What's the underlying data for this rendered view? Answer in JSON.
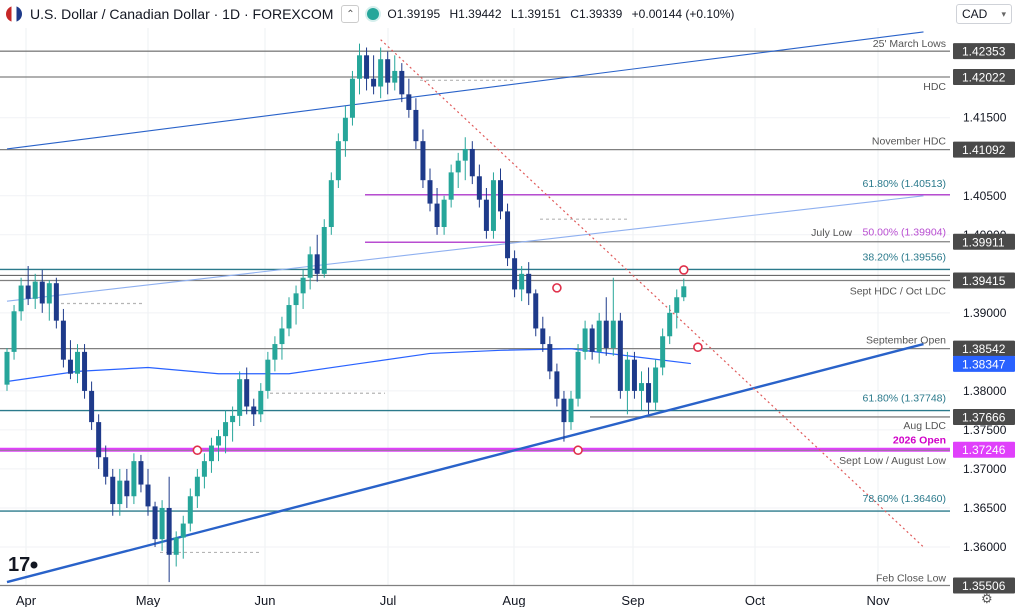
{
  "header": {
    "symbol": "U.S. Dollar / Canadian Dollar · 1D · FOREXCOM",
    "open": "O1.39195",
    "high": "H1.39442",
    "low": "L1.39151",
    "close": "C1.39339",
    "change": "+0.00144 (+0.10%)"
  },
  "currency_selector": "CAD",
  "colors": {
    "up": "#26a69a",
    "down": "#1e3a8a",
    "fib": "#b84dd1",
    "fib_label": "#2b7a8c",
    "level_line": "#808080",
    "price_tag": "#4a4a4a",
    "blue_tag": "#2962ff",
    "magenta": "#e040fb",
    "trend_blue": "#2962c9",
    "trend_red": "#e05a5a"
  },
  "chart_data": {
    "type": "candlestick",
    "title": "U.S. Dollar / Canadian Dollar · 1D · FOREXCOM",
    "ylim": [
      1.355,
      1.4265
    ],
    "price_ticks": [
      "1.41500",
      "1.40500",
      "1.40000",
      "1.39000",
      "1.38000",
      "1.37500",
      "1.37000",
      "1.36500",
      "1.36000"
    ],
    "months": [
      "Apr",
      "May",
      "Jun",
      "Jul",
      "Aug",
      "Sep",
      "Oct",
      "Nov"
    ],
    "price_tags": [
      {
        "label": "1.42353",
        "value": 1.42353,
        "style": "gray"
      },
      {
        "label": "1.42022",
        "value": 1.42022,
        "style": "gray"
      },
      {
        "label": "1.41092",
        "value": 1.41092,
        "style": "gray"
      },
      {
        "label": "1.39911",
        "value": 1.39911,
        "style": "gray"
      },
      {
        "label": "1.39415",
        "value": 1.39415,
        "style": "gray"
      },
      {
        "label": "1.38542",
        "value": 1.38542,
        "style": "gray"
      },
      {
        "label": "1.38347",
        "value": 1.38347,
        "style": "blue"
      },
      {
        "label": "1.37666",
        "value": 1.37666,
        "style": "gray"
      },
      {
        "label": "1.37246",
        "value": 1.37246,
        "style": "magenta"
      },
      {
        "label": "1.35506",
        "value": 1.35506,
        "style": "gray"
      }
    ],
    "levels": [
      {
        "label": "25' March Lows",
        "value": 1.42353,
        "kind": "gray"
      },
      {
        "label": "HDC",
        "value": 1.42022,
        "kind": "gray"
      },
      {
        "label": "November HDC",
        "value": 1.41092,
        "kind": "gray"
      },
      {
        "label": "61.80% (1.40513)",
        "value": 1.40513,
        "kind": "fib-purple"
      },
      {
        "label": "50.00% (1.39904)",
        "value": 1.39904,
        "kind": "fib-purple-short"
      },
      {
        "label": "July Low",
        "value": 1.39911,
        "kind": "gray"
      },
      {
        "label": "38.20% (1.39556)",
        "value": 1.39556,
        "kind": "fib-teal"
      },
      {
        "label": "Sept HDC / Oct LDC",
        "value": 1.39415,
        "kind": "gray"
      },
      {
        "label": "September Open",
        "value": 1.38542,
        "kind": "gray"
      },
      {
        "label": "61.80% (1.37748)",
        "value": 1.37748,
        "kind": "fib-teal"
      },
      {
        "label": "Aug LDC",
        "value": 1.37666,
        "kind": "gray"
      },
      {
        "label": "2026 Open",
        "value": 1.37246,
        "kind": "magenta"
      },
      {
        "label": "Sept Low / August Low",
        "value": 1.3724,
        "kind": "gray"
      },
      {
        "label": "78.60% (1.36460)",
        "value": 1.3646,
        "kind": "fib-teal"
      },
      {
        "label": "Feb Close Low",
        "value": 1.35506,
        "kind": "gray"
      }
    ],
    "candles": [
      [
        1.3808,
        1.3855,
        1.38,
        1.385
      ],
      [
        1.385,
        1.391,
        1.384,
        1.3902
      ],
      [
        1.3902,
        1.3945,
        1.389,
        1.3935
      ],
      [
        1.3935,
        1.396,
        1.391,
        1.3918
      ],
      [
        1.3918,
        1.395,
        1.3905,
        1.394
      ],
      [
        1.394,
        1.3955,
        1.39,
        1.3912
      ],
      [
        1.3912,
        1.3942,
        1.389,
        1.3938
      ],
      [
        1.3938,
        1.3945,
        1.388,
        1.389
      ],
      [
        1.389,
        1.3905,
        1.383,
        1.384
      ],
      [
        1.384,
        1.3865,
        1.3815,
        1.3822
      ],
      [
        1.3822,
        1.386,
        1.381,
        1.385
      ],
      [
        1.385,
        1.386,
        1.379,
        1.38
      ],
      [
        1.38,
        1.3812,
        1.375,
        1.376
      ],
      [
        1.376,
        1.377,
        1.37,
        1.3715
      ],
      [
        1.3715,
        1.373,
        1.368,
        1.369
      ],
      [
        1.369,
        1.37,
        1.364,
        1.3655
      ],
      [
        1.3655,
        1.37,
        1.364,
        1.3685
      ],
      [
        1.3685,
        1.37,
        1.365,
        1.3665
      ],
      [
        1.3665,
        1.372,
        1.3655,
        1.371
      ],
      [
        1.371,
        1.3718,
        1.367,
        1.368
      ],
      [
        1.368,
        1.37,
        1.364,
        1.3652
      ],
      [
        1.3652,
        1.3658,
        1.36,
        1.361
      ],
      [
        1.361,
        1.366,
        1.3595,
        1.365
      ],
      [
        1.365,
        1.369,
        1.3555,
        1.359
      ],
      [
        1.359,
        1.362,
        1.3575,
        1.3612
      ],
      [
        1.3612,
        1.364,
        1.3585,
        1.363
      ],
      [
        1.363,
        1.3675,
        1.362,
        1.3665
      ],
      [
        1.3665,
        1.37,
        1.365,
        1.369
      ],
      [
        1.369,
        1.372,
        1.3675,
        1.371
      ],
      [
        1.371,
        1.374,
        1.3695,
        1.373
      ],
      [
        1.373,
        1.375,
        1.371,
        1.3742
      ],
      [
        1.3742,
        1.3775,
        1.372,
        1.376
      ],
      [
        1.376,
        1.378,
        1.3735,
        1.3768
      ],
      [
        1.3768,
        1.3825,
        1.3755,
        1.3815
      ],
      [
        1.3815,
        1.383,
        1.377,
        1.378
      ],
      [
        1.378,
        1.379,
        1.3755,
        1.377
      ],
      [
        1.377,
        1.381,
        1.376,
        1.38
      ],
      [
        1.38,
        1.385,
        1.379,
        1.384
      ],
      [
        1.384,
        1.387,
        1.3825,
        1.386
      ],
      [
        1.386,
        1.3895,
        1.384,
        1.388
      ],
      [
        1.388,
        1.392,
        1.387,
        1.391
      ],
      [
        1.391,
        1.3935,
        1.3885,
        1.3925
      ],
      [
        1.3925,
        1.3955,
        1.3905,
        1.3945
      ],
      [
        1.3945,
        1.3985,
        1.393,
        1.3975
      ],
      [
        1.3975,
        1.4,
        1.394,
        1.395
      ],
      [
        1.395,
        1.402,
        1.3945,
        1.401
      ],
      [
        1.401,
        1.408,
        1.4,
        1.407
      ],
      [
        1.407,
        1.413,
        1.406,
        1.412
      ],
      [
        1.412,
        1.4165,
        1.41,
        1.415
      ],
      [
        1.415,
        1.421,
        1.414,
        1.42
      ],
      [
        1.42,
        1.4245,
        1.418,
        1.423
      ],
      [
        1.423,
        1.424,
        1.4185,
        1.42
      ],
      [
        1.42,
        1.423,
        1.418,
        1.419
      ],
      [
        1.419,
        1.424,
        1.4175,
        1.4225
      ],
      [
        1.4225,
        1.4235,
        1.418,
        1.4195
      ],
      [
        1.4195,
        1.423,
        1.4185,
        1.421
      ],
      [
        1.421,
        1.422,
        1.417,
        1.418
      ],
      [
        1.418,
        1.42,
        1.415,
        1.416
      ],
      [
        1.416,
        1.4175,
        1.411,
        1.412
      ],
      [
        1.412,
        1.4135,
        1.406,
        1.407
      ],
      [
        1.407,
        1.4085,
        1.403,
        1.404
      ],
      [
        1.404,
        1.406,
        1.4,
        1.401
      ],
      [
        1.401,
        1.405,
        1.4,
        1.4045
      ],
      [
        1.4045,
        1.409,
        1.4035,
        1.408
      ],
      [
        1.408,
        1.4105,
        1.406,
        1.4095
      ],
      [
        1.4095,
        1.4125,
        1.407,
        1.411
      ],
      [
        1.411,
        1.412,
        1.4065,
        1.4075
      ],
      [
        1.4075,
        1.409,
        1.4035,
        1.4045
      ],
      [
        1.4045,
        1.406,
        1.3995,
        1.4005
      ],
      [
        1.4005,
        1.408,
        1.3995,
        1.407
      ],
      [
        1.407,
        1.4085,
        1.402,
        1.403
      ],
      [
        1.403,
        1.404,
        1.396,
        1.397
      ],
      [
        1.397,
        1.398,
        1.392,
        1.393
      ],
      [
        1.393,
        1.396,
        1.3915,
        1.395
      ],
      [
        1.395,
        1.3965,
        1.391,
        1.3925
      ],
      [
        1.3925,
        1.393,
        1.387,
        1.388
      ],
      [
        1.388,
        1.3895,
        1.385,
        1.386
      ],
      [
        1.386,
        1.387,
        1.3815,
        1.3825
      ],
      [
        1.3825,
        1.3835,
        1.378,
        1.379
      ],
      [
        1.379,
        1.38,
        1.3735,
        1.376
      ],
      [
        1.376,
        1.38,
        1.375,
        1.379
      ],
      [
        1.379,
        1.386,
        1.378,
        1.385
      ],
      [
        1.385,
        1.389,
        1.384,
        1.388
      ],
      [
        1.388,
        1.3885,
        1.384,
        1.385
      ],
      [
        1.385,
        1.39,
        1.3835,
        1.389
      ],
      [
        1.389,
        1.392,
        1.3845,
        1.3855
      ],
      [
        1.3855,
        1.3945,
        1.3845,
        1.389
      ],
      [
        1.389,
        1.39,
        1.379,
        1.38
      ],
      [
        1.38,
        1.385,
        1.377,
        1.384
      ],
      [
        1.384,
        1.385,
        1.379,
        1.38
      ],
      [
        1.38,
        1.3825,
        1.3775,
        1.381
      ],
      [
        1.381,
        1.383,
        1.377,
        1.3785
      ],
      [
        1.3785,
        1.384,
        1.3775,
        1.383
      ],
      [
        1.383,
        1.388,
        1.382,
        1.387
      ],
      [
        1.387,
        1.391,
        1.386,
        1.39
      ],
      [
        1.39,
        1.393,
        1.388,
        1.392
      ],
      [
        1.392,
        1.3944,
        1.3915,
        1.3934
      ]
    ],
    "moving_average": {
      "color": "#2962ff",
      "points": [
        [
          0,
          1.3812
        ],
        [
          10,
          1.3825
        ],
        [
          20,
          1.383
        ],
        [
          30,
          1.3822
        ],
        [
          40,
          1.3822
        ],
        [
          50,
          1.3835
        ],
        [
          60,
          1.3848
        ],
        [
          70,
          1.3852
        ],
        [
          80,
          1.3854
        ],
        [
          88,
          1.3845
        ],
        [
          97,
          1.3835
        ]
      ]
    },
    "trendlines": [
      {
        "name": "lower-blue-support",
        "from": [
          0,
          1.3555
        ],
        "to": [
          130,
          1.386
        ],
        "color": "#2962c9"
      },
      {
        "name": "upper-blue-channel",
        "from": [
          0,
          1.411
        ],
        "to": [
          130,
          1.426
        ],
        "color": "#2962c9"
      },
      {
        "name": "light-blue-channel",
        "from": [
          0,
          1.3915
        ],
        "to": [
          130,
          1.405
        ],
        "color": "#8fb0f0"
      },
      {
        "name": "red-dotted-resistance",
        "from": [
          53,
          1.425
        ],
        "to": [
          130,
          1.36
        ],
        "color": "#e05a5a"
      }
    ],
    "markers": [
      {
        "x": 27,
        "y": 1.3724
      },
      {
        "x": 78,
        "y": 1.3932
      },
      {
        "x": 81,
        "y": 1.3724
      },
      {
        "x": 96,
        "y": 1.3955
      },
      {
        "x": 98,
        "y": 1.3856
      }
    ]
  }
}
